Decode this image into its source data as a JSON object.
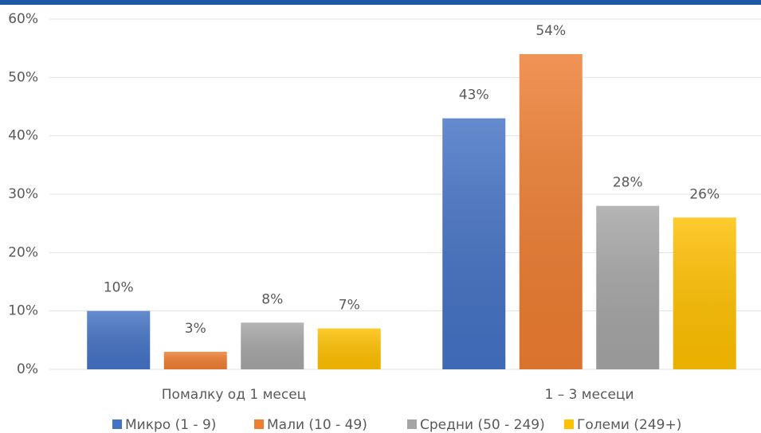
{
  "chart_data": {
    "type": "bar",
    "categories": [
      "Помалку од 1 месец",
      "1 – 3 месеци"
    ],
    "series": [
      {
        "name": "Микро (1 - 9)",
        "color": "#4472c4",
        "values": [
          10,
          43
        ],
        "value_labels": [
          "10%",
          "43%"
        ]
      },
      {
        "name": "Мали (10 - 49)",
        "color": "#ed7d31",
        "values": [
          3,
          54
        ],
        "value_labels": [
          "3%",
          "54%"
        ]
      },
      {
        "name": "Средни (50 - 249)",
        "color": "#a5a5a5",
        "values": [
          8,
          28
        ],
        "value_labels": [
          "8%",
          "28%"
        ]
      },
      {
        "name": "Големи (249+)",
        "color": "#ffc000",
        "values": [
          7,
          26
        ],
        "value_labels": [
          "7%",
          "26%"
        ]
      }
    ],
    "ylim": [
      0,
      60
    ],
    "yticks": [
      {
        "value": 0,
        "label": "0%"
      },
      {
        "value": 10,
        "label": "10%"
      },
      {
        "value": 20,
        "label": "20%"
      },
      {
        "value": 30,
        "label": "30%"
      },
      {
        "value": 40,
        "label": "40%"
      },
      {
        "value": 50,
        "label": "50%"
      },
      {
        "value": 60,
        "label": "60%"
      }
    ],
    "grid": true,
    "legend": "bottom"
  }
}
